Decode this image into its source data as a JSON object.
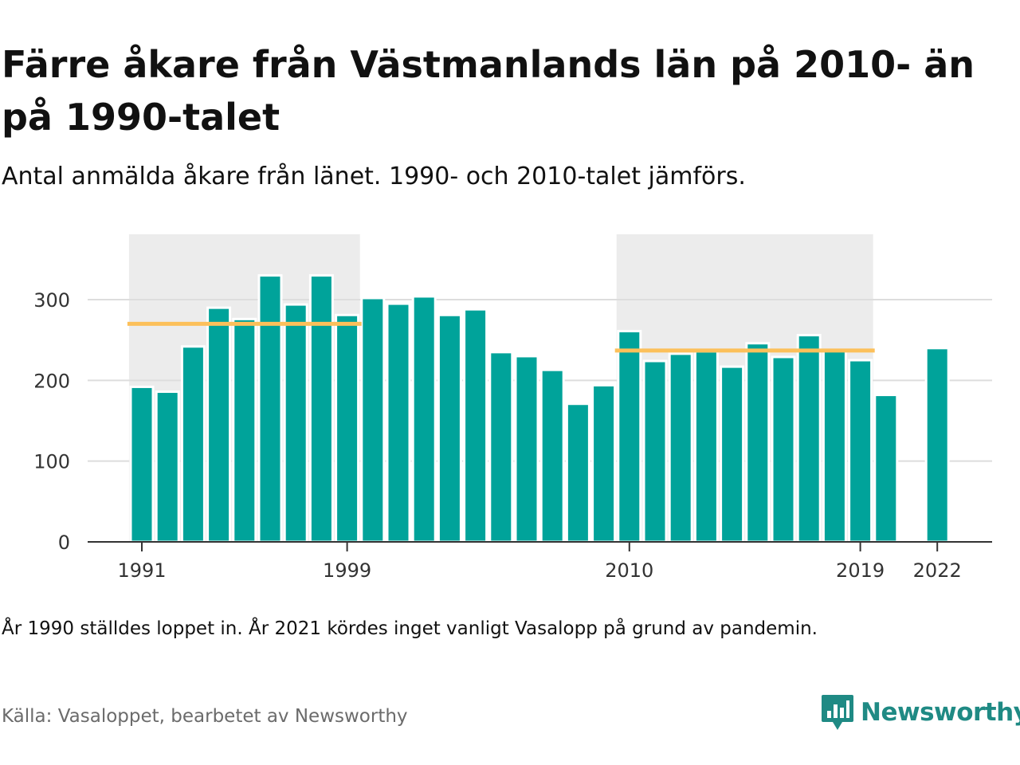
{
  "header": {
    "title": "Färre åkare från Västmanlands län på 2010- än på 1990-talet",
    "subtitle": "Antal anmälda åkare från länet. 1990- och 2010-talet jämförs."
  },
  "footer": {
    "note": "År 1990 ställdes loppet in. År 2021 kördes inget vanligt Vasalopp på grund av pandemin.",
    "source": "Källa: Vasaloppet, bearbetet av Newsworthy",
    "brand": "Newsworthy"
  },
  "colors": {
    "bar": "#00a39a",
    "decade_band": "#ececec",
    "average_line": "#fcc05a",
    "grid": "#dddddd",
    "axis": "#333333",
    "brand": "#1f8a84"
  },
  "chart_data": {
    "type": "bar",
    "x": [
      1991,
      1992,
      1993,
      1994,
      1995,
      1996,
      1997,
      1998,
      1999,
      2000,
      2001,
      2002,
      2003,
      2004,
      2005,
      2006,
      2007,
      2008,
      2009,
      2010,
      2011,
      2012,
      2013,
      2014,
      2015,
      2016,
      2017,
      2018,
      2019,
      2020,
      2021,
      2022
    ],
    "values": [
      192,
      186,
      242,
      290,
      276,
      330,
      294,
      330,
      281,
      302,
      295,
      304,
      281,
      288,
      235,
      230,
      213,
      171,
      194,
      261,
      224,
      233,
      236,
      217,
      246,
      229,
      256,
      237,
      225,
      182,
      null,
      240
    ],
    "x_tick_labels": [
      "1991",
      "1999",
      "2010",
      "2019",
      "2022"
    ],
    "y_ticks": [
      0,
      100,
      200,
      300
    ],
    "ylim": [
      0,
      360
    ],
    "grid": true,
    "highlight_periods": [
      {
        "from": 1991,
        "to": 1999,
        "average": 270
      },
      {
        "from": 2010,
        "to": 2019,
        "average": 237
      }
    ]
  }
}
